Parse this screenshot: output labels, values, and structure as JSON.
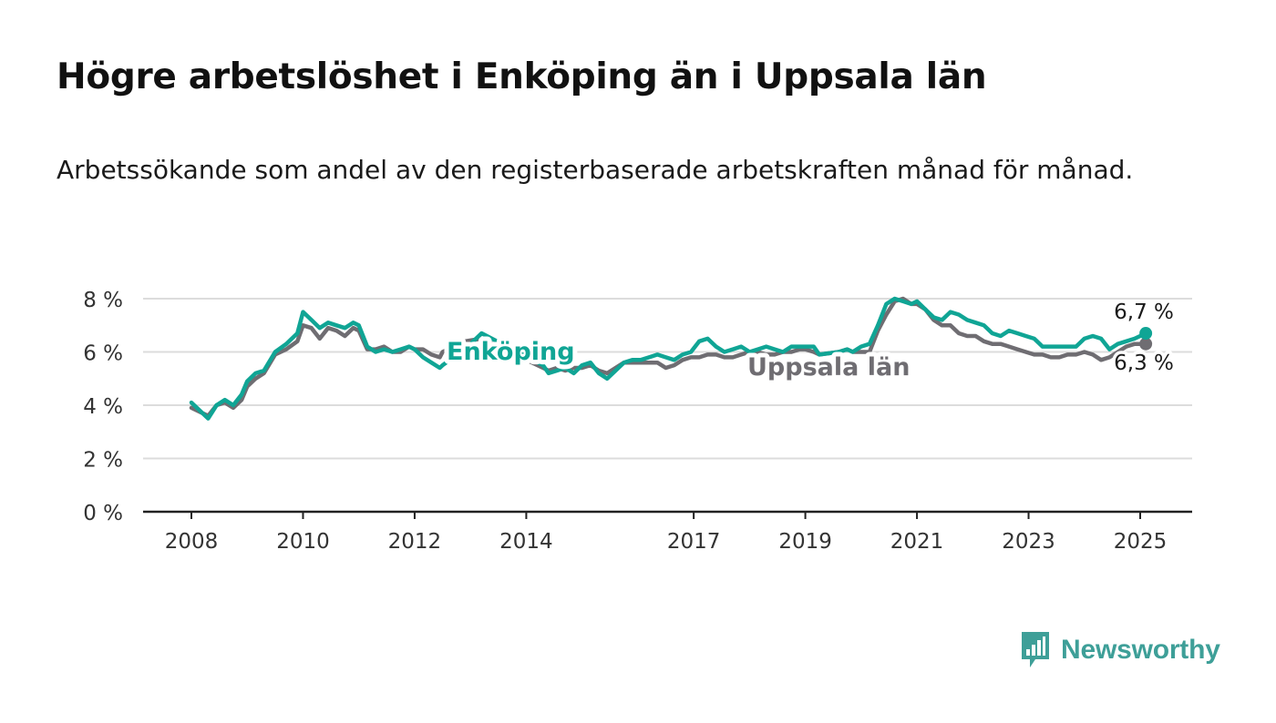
{
  "title": "Högre arbetslöshet i Enköping än i Uppsala län",
  "subtitle": "Arbetssökande som andel av den registerbaserade arbetskraften månad för månad.",
  "brand": {
    "name": "Newsworthy",
    "icon": "newsworthy-logo-icon",
    "color": "#3e9f98"
  },
  "colors": {
    "enkoping": "#10a595",
    "uppsala": "#6f6d72",
    "grid": "#dcdcdc",
    "axis": "#222222"
  },
  "chart_data": {
    "type": "line",
    "title": "Högre arbetslöshet i Enköping än i Uppsala län",
    "subtitle": "Arbetssökande som andel av den registerbaserade arbetskraften månad för månad.",
    "x_unit": "year",
    "xlim": [
      2007.6,
      2025.9
    ],
    "ylim": [
      0,
      8
    ],
    "yticks": [
      0,
      2,
      4,
      6,
      8
    ],
    "ytick_labels": [
      "0 %",
      "2 %",
      "4 %",
      "6 %",
      "8 %"
    ],
    "xticks": [
      2008,
      2010,
      2012,
      2014,
      2017,
      2019,
      2021,
      2023,
      2025
    ],
    "xtick_labels": [
      "2008",
      "2010",
      "2012",
      "2014",
      "2017",
      "2019",
      "2021",
      "2023",
      "2025"
    ],
    "grid": true,
    "legend": "inline labels",
    "series": [
      {
        "name": "Uppsala län",
        "color": "#6f6d72",
        "end_label": "6,3 %",
        "x": [
          2008.0,
          2008.3,
          2008.45,
          2008.6,
          2008.75,
          2008.9,
          2009.0,
          2009.15,
          2009.3,
          2009.5,
          2009.7,
          2009.9,
          2010.0,
          2010.15,
          2010.3,
          2010.45,
          2010.6,
          2010.75,
          2010.9,
          2011.0,
          2011.15,
          2011.3,
          2011.45,
          2011.6,
          2011.75,
          2011.9,
          2012.0,
          2012.15,
          2012.3,
          2012.45,
          2012.5,
          2012.9,
          2013.2,
          2014.3,
          2014.4,
          2014.55,
          2014.7,
          2014.85,
          2015.0,
          2015.15,
          2015.3,
          2015.45,
          2015.6,
          2015.75,
          2015.9,
          2016.05,
          2016.2,
          2016.35,
          2016.5,
          2016.65,
          2016.8,
          2016.95,
          2017.1,
          2017.25,
          2017.4,
          2017.55,
          2017.7,
          2017.85,
          2018.0,
          2018.15,
          2018.3,
          2018.45,
          2018.6,
          2018.75,
          2018.9,
          2019.0,
          2019.15,
          2019.25,
          2019.6,
          2019.75,
          2019.85,
          2020.0,
          2020.15,
          2020.3,
          2020.45,
          2020.6,
          2020.75,
          2020.9,
          2021.0,
          2021.15,
          2021.3,
          2021.45,
          2021.6,
          2021.75,
          2021.9,
          2022.05,
          2022.2,
          2022.35,
          2022.5,
          2022.65,
          2022.8,
          2022.95,
          2023.1,
          2023.25,
          2023.4,
          2023.55,
          2023.7,
          2023.85,
          2024.0,
          2024.15,
          2024.3,
          2024.45,
          2024.6,
          2024.75,
          2024.9,
          2025.0,
          2025.1
        ],
        "y": [
          3.9,
          3.6,
          4.0,
          4.1,
          3.9,
          4.2,
          4.7,
          5.0,
          5.2,
          5.9,
          6.1,
          6.4,
          7.0,
          6.9,
          6.5,
          6.9,
          6.8,
          6.6,
          6.9,
          6.8,
          6.1,
          6.1,
          6.2,
          6.0,
          6.0,
          6.2,
          6.1,
          6.1,
          5.9,
          5.8,
          6.0,
          6.4,
          6.5,
          5.4,
          5.3,
          5.4,
          5.3,
          5.4,
          5.4,
          5.5,
          5.3,
          5.2,
          5.4,
          5.6,
          5.6,
          5.6,
          5.6,
          5.6,
          5.4,
          5.5,
          5.7,
          5.8,
          5.8,
          5.9,
          5.9,
          5.8,
          5.8,
          5.9,
          6.0,
          6.0,
          5.9,
          5.9,
          6.0,
          6.0,
          6.1,
          6.1,
          6.0,
          5.9,
          6.0,
          6.1,
          6.0,
          6.0,
          6.0,
          6.8,
          7.4,
          7.9,
          8.0,
          7.8,
          7.8,
          7.6,
          7.2,
          7.0,
          7.0,
          6.7,
          6.6,
          6.6,
          6.4,
          6.3,
          6.3,
          6.2,
          6.1,
          6.0,
          5.9,
          5.9,
          5.8,
          5.8,
          5.9,
          5.9,
          6.0,
          5.9,
          5.7,
          5.8,
          6.0,
          6.2,
          6.3,
          6.3,
          6.3
        ]
      },
      {
        "name": "Enköping",
        "color": "#10a595",
        "end_label": "6,7 %",
        "x": [
          2008.0,
          2008.3,
          2008.45,
          2008.6,
          2008.75,
          2008.9,
          2009.0,
          2009.15,
          2009.3,
          2009.5,
          2009.7,
          2009.9,
          2010.0,
          2010.15,
          2010.3,
          2010.45,
          2010.6,
          2010.75,
          2010.9,
          2011.0,
          2011.15,
          2011.3,
          2011.45,
          2011.6,
          2011.75,
          2011.9,
          2012.0,
          2012.15,
          2012.3,
          2012.45,
          2012.5,
          2012.9,
          2013.2,
          2014.3,
          2014.4,
          2014.55,
          2014.7,
          2014.85,
          2015.0,
          2015.15,
          2015.3,
          2015.45,
          2015.6,
          2015.75,
          2015.9,
          2016.05,
          2016.2,
          2016.35,
          2016.5,
          2016.65,
          2016.8,
          2016.95,
          2017.1,
          2017.25,
          2017.4,
          2017.55,
          2017.7,
          2017.85,
          2018.0,
          2018.15,
          2018.3,
          2018.45,
          2018.6,
          2018.75,
          2018.9,
          2019.0,
          2019.15,
          2019.25,
          2019.6,
          2019.75,
          2019.85,
          2020.0,
          2020.15,
          2020.3,
          2020.45,
          2020.6,
          2020.75,
          2020.9,
          2021.0,
          2021.15,
          2021.3,
          2021.45,
          2021.6,
          2021.75,
          2021.9,
          2022.05,
          2022.2,
          2022.35,
          2022.5,
          2022.65,
          2022.8,
          2022.95,
          2023.1,
          2023.25,
          2023.4,
          2023.55,
          2023.7,
          2023.85,
          2024.0,
          2024.15,
          2024.3,
          2024.45,
          2024.6,
          2024.75,
          2024.9,
          2025.0,
          2025.1
        ],
        "y": [
          4.1,
          3.5,
          4.0,
          4.2,
          4.0,
          4.4,
          4.9,
          5.2,
          5.3,
          6.0,
          6.3,
          6.7,
          7.5,
          7.2,
          6.9,
          7.1,
          7.0,
          6.9,
          7.1,
          7.0,
          6.2,
          6.0,
          6.1,
          6.0,
          6.1,
          6.2,
          6.1,
          5.8,
          5.6,
          5.4,
          5.5,
          6.1,
          6.7,
          5.5,
          5.2,
          5.3,
          5.4,
          5.2,
          5.5,
          5.6,
          5.2,
          5.0,
          5.3,
          5.6,
          5.7,
          5.7,
          5.8,
          5.9,
          5.8,
          5.7,
          5.9,
          6.0,
          6.4,
          6.5,
          6.2,
          6.0,
          6.1,
          6.2,
          6.0,
          6.1,
          6.2,
          6.1,
          6.0,
          6.2,
          6.2,
          6.2,
          6.2,
          5.9,
          6.0,
          6.1,
          6.0,
          6.2,
          6.3,
          7.0,
          7.8,
          8.0,
          7.9,
          7.8,
          7.9,
          7.6,
          7.3,
          7.2,
          7.5,
          7.4,
          7.2,
          7.1,
          7.0,
          6.7,
          6.6,
          6.8,
          6.7,
          6.6,
          6.5,
          6.2,
          6.2,
          6.2,
          6.2,
          6.2,
          6.5,
          6.6,
          6.5,
          6.1,
          6.3,
          6.4,
          6.5,
          6.6,
          6.7
        ]
      }
    ],
    "annotations": [
      {
        "text": "Enköping",
        "series": "Enköping"
      },
      {
        "text": "Uppsala län",
        "series": "Uppsala län"
      }
    ]
  }
}
